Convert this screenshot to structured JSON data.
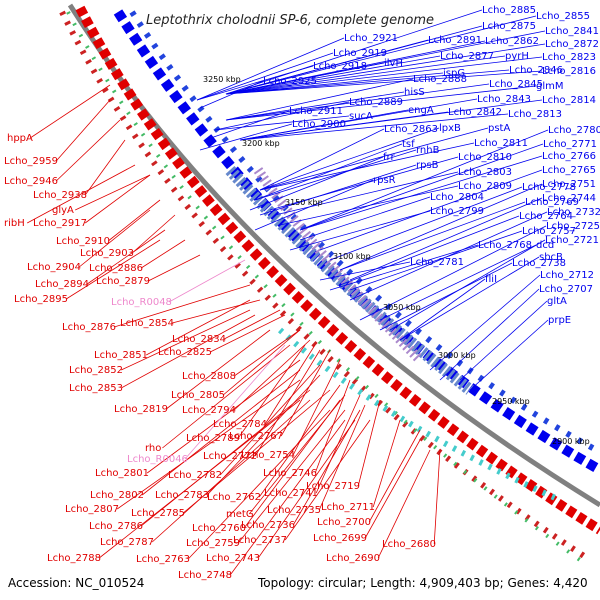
{
  "title": "Leptothrix cholodnii SP-6, complete genome",
  "footer": {
    "accession": "Accession: NC_010524",
    "summary": "Topology: circular; Length: 4,909,403 bp; Genes: 4,420"
  },
  "colors": {
    "forward": "#0000ee",
    "reverse": "#e00000",
    "rna": "#ee88cc",
    "backbone": "#808080"
  },
  "ticks": [
    "3250 kbp",
    "3200 kbp",
    "3150 kbp",
    "3100 kbp",
    "3050 kbp",
    "3000 kbp",
    "2950 kbp",
    "2900 kbp"
  ],
  "blue_labels": [
    "Lcho_2885",
    "Lcho_2855",
    "Lcho_2875",
    "Lcho_2841",
    "Lcho_2891",
    "Lcho_2862",
    "Lcho_2872",
    "Lcho_2921",
    "Lcho_2877",
    "pyrH",
    "Lcho_2823",
    "Lcho_2919",
    "Lcho_2918",
    "ilvH",
    "ispG",
    "Lcho_2846",
    "Lcho_2816",
    "Lcho_2925",
    "Lcho_2888",
    "Lcho_2845",
    "glmM",
    "hisS",
    "Lcho_2843",
    "Lcho_2814",
    "Lcho_2889",
    "Lcho_2911",
    "engA",
    "Lcho_2842",
    "Lcho_2813",
    "sucA",
    "Lcho_2900",
    "lpxB",
    "pstA",
    "Lcho_2863",
    "Lcho_2780",
    "Lcho_2811",
    "Lcho_2771",
    "tsf",
    "rnhB",
    "frr",
    "Lcho_2810",
    "Lcho_2766",
    "rpsB",
    "Lcho_2803",
    "Lcho_2765",
    "rpsR",
    "Lcho_2809",
    "Lcho_2778",
    "Lcho_2751",
    "Lcho_2804",
    "Lcho_2769",
    "Lcho_2744",
    "Lcho_2799",
    "Lcho_2764",
    "Lcho_2732",
    "Lcho_2757",
    "Lcho_2725",
    "Lcho_2768",
    "dcd",
    "Lcho_2721",
    "Lcho_2781",
    "Lcho_2738",
    "sbcB",
    "fliI",
    "Lcho_2712",
    "Lcho_2707",
    "gltA",
    "prpE"
  ],
  "red_labels": [
    "hppA",
    "Lcho_2959",
    "Lcho_2946",
    "Lcho_2938",
    "glyA",
    "ribH",
    "Lcho_2917",
    "Lcho_2910",
    "Lcho_2903",
    "Lcho_2904",
    "Lcho_2886",
    "Lcho_2894",
    "Lcho_2879",
    "Lcho_2895",
    "Lcho_2876",
    "Lcho_2854",
    "Lcho_2834",
    "Lcho_2851",
    "Lcho_2825",
    "Lcho_2852",
    "Lcho_2853",
    "Lcho_2808",
    "Lcho_2805",
    "Lcho_2819",
    "Lcho_2794",
    "Lcho_2784",
    "Lcho_2789",
    "rho",
    "Lcho_2767",
    "Lcho_2772",
    "Lcho_2754",
    "Lcho_2801",
    "Lcho_2782",
    "Lcho_2746",
    "Lcho_2719",
    "Lcho_2802",
    "Lcho_2783",
    "Lcho_2762",
    "Lcho_2741",
    "Lcho_2807",
    "Lcho_2785",
    "metG",
    "Lcho_2735",
    "Lcho_2711",
    "Lcho_2786",
    "Lcho_2760",
    "Lcho_2736",
    "Lcho_2700",
    "Lcho_2787",
    "Lcho_2759",
    "Lcho_2737",
    "Lcho_2680",
    "Lcho_2699",
    "Lcho_2788",
    "Lcho_2763",
    "Lcho_2743",
    "Lcho_2690",
    "Lcho_2748"
  ],
  "rna_labels": [
    "Lcho_R0048",
    "Lcho_R0046"
  ]
}
